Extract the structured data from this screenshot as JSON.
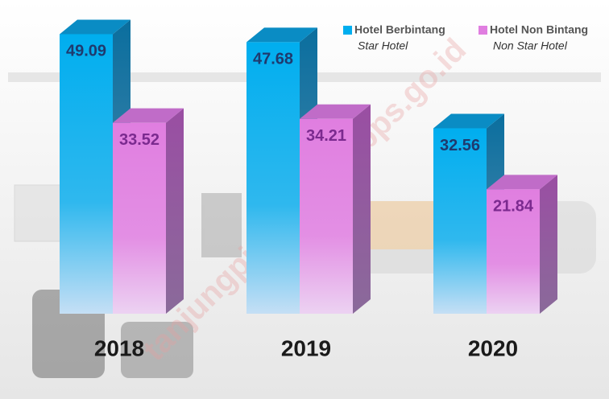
{
  "chart_data": {
    "type": "bar3d",
    "categories": [
      "2018",
      "2019",
      "2020"
    ],
    "series": [
      {
        "name": "Hotel Berbintang",
        "name_en": "Star Hotel",
        "color": "#00aeef",
        "values": [
          49.09,
          47.68,
          32.56
        ]
      },
      {
        "name": "Hotel Non Bintang",
        "name_en": "Non Star Hotel",
        "color": "#e07ee0",
        "values": [
          33.52,
          34.21,
          21.84
        ]
      }
    ],
    "watermark": "tanjungpinangkota.bps.go.id"
  }
}
